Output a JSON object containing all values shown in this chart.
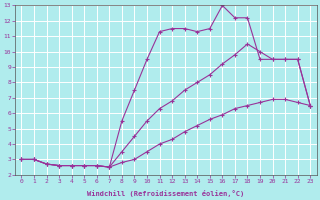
{
  "xlabel": "Windchill (Refroidissement éolien,°C)",
  "bg_color": "#b0eced",
  "grid_color": "#ffffff",
  "line_color": "#993399",
  "xlim": [
    -0.5,
    23.5
  ],
  "ylim": [
    2,
    13
  ],
  "xticks": [
    0,
    1,
    2,
    3,
    4,
    5,
    6,
    7,
    8,
    9,
    10,
    11,
    12,
    13,
    14,
    15,
    16,
    17,
    18,
    19,
    20,
    21,
    22,
    23
  ],
  "yticks": [
    2,
    3,
    4,
    5,
    6,
    7,
    8,
    9,
    10,
    11,
    12,
    13
  ],
  "line1_x": [
    0,
    1,
    2,
    3,
    4,
    5,
    6,
    7,
    8,
    9,
    10,
    11,
    12,
    13,
    14,
    15,
    16,
    17,
    18,
    19,
    20,
    21,
    22,
    23
  ],
  "line1_y": [
    3.0,
    3.0,
    2.7,
    2.6,
    2.6,
    2.6,
    2.6,
    2.5,
    2.8,
    3.0,
    3.5,
    4.0,
    4.3,
    4.8,
    5.2,
    5.6,
    5.9,
    6.3,
    6.5,
    6.7,
    6.9,
    6.9,
    6.7,
    6.5
  ],
  "line2_x": [
    0,
    1,
    2,
    3,
    4,
    5,
    6,
    7,
    8,
    9,
    10,
    11,
    12,
    13,
    14,
    15,
    16,
    17,
    18,
    19,
    20,
    21,
    22,
    23
  ],
  "line2_y": [
    3.0,
    3.0,
    2.7,
    2.6,
    2.6,
    2.6,
    2.6,
    2.5,
    5.5,
    7.5,
    9.5,
    11.3,
    11.5,
    11.5,
    11.3,
    11.5,
    13.0,
    12.2,
    12.2,
    9.5,
    9.5,
    9.5,
    9.5,
    6.5
  ],
  "line3_x": [
    0,
    1,
    2,
    3,
    4,
    5,
    6,
    7,
    8,
    9,
    10,
    11,
    12,
    13,
    14,
    15,
    16,
    17,
    18,
    19,
    20,
    21,
    22,
    23
  ],
  "line3_y": [
    3.0,
    3.0,
    2.7,
    2.6,
    2.6,
    2.6,
    2.6,
    2.5,
    3.5,
    4.5,
    5.5,
    6.3,
    6.8,
    7.5,
    8.0,
    8.5,
    9.2,
    9.8,
    10.5,
    10.0,
    9.5,
    9.5,
    9.5,
    6.5
  ]
}
